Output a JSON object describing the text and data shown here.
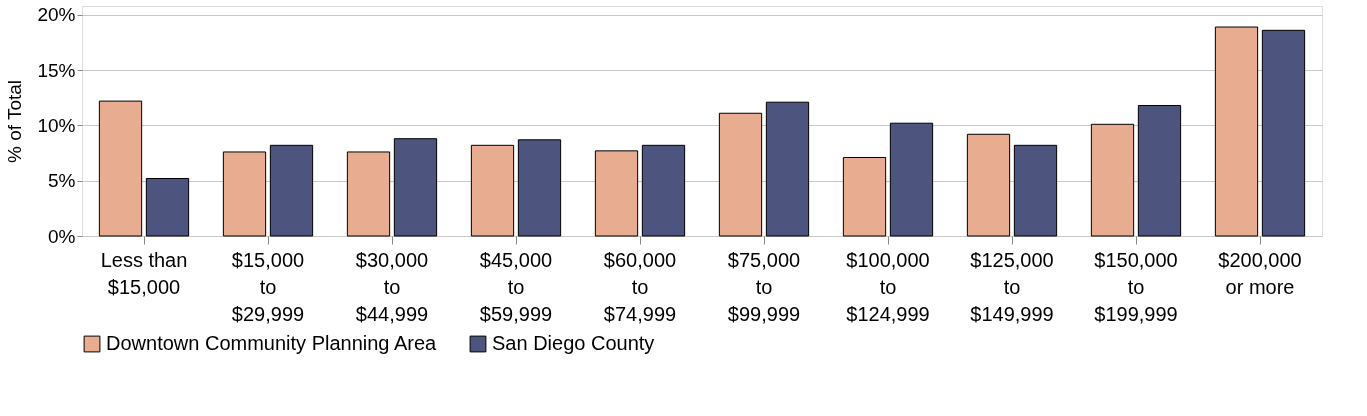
{
  "chart_data": {
    "type": "bar",
    "ylabel": "% of Total",
    "categories": [
      "Less than\n$15,000",
      "$15,000\nto\n$29,999",
      "$30,000\nto\n$44,999",
      "$45,000\nto\n$59,999",
      "$60,000\nto\n$74,999",
      "$75,000\nto\n$99,999",
      "$100,000\nto\n$124,999",
      "$125,000\nto\n$149,999",
      "$150,000\nto\n$199,999",
      "$200,000\nor more"
    ],
    "series": [
      {
        "name": "Downtown Community Planning Area",
        "color": "#e8ac91",
        "values": [
          12.2,
          7.6,
          7.6,
          8.2,
          7.7,
          11.1,
          7.1,
          9.2,
          10.1,
          18.9
        ]
      },
      {
        "name": "San Diego County",
        "color": "#4d547d",
        "values": [
          5.2,
          8.2,
          8.8,
          8.7,
          8.2,
          12.1,
          10.2,
          8.2,
          11.8,
          18.6
        ]
      }
    ],
    "ylim": [
      0,
      20.8
    ],
    "yticks": [
      {
        "value": 0,
        "label": "0%"
      },
      {
        "value": 5,
        "label": "5%"
      },
      {
        "value": 10,
        "label": "10%"
      },
      {
        "value": 15,
        "label": "15%"
      },
      {
        "value": 20,
        "label": "20%"
      }
    ],
    "grid": "y",
    "legend": "bottom left"
  }
}
